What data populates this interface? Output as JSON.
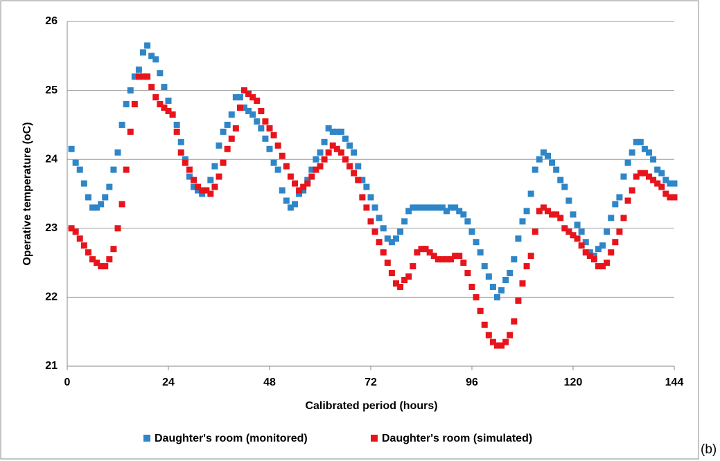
{
  "chart_data": {
    "type": "scatter",
    "x_label": "Calibrated period (hours)",
    "y_label": "Operative temperature (oC)",
    "panel_label": "(b)",
    "x": [
      1,
      2,
      3,
      4,
      5,
      6,
      7,
      8,
      9,
      10,
      11,
      12,
      13,
      14,
      15,
      16,
      17,
      18,
      19,
      20,
      21,
      22,
      23,
      24,
      25,
      26,
      27,
      28,
      29,
      30,
      31,
      32,
      33,
      34,
      35,
      36,
      37,
      38,
      39,
      40,
      41,
      42,
      43,
      44,
      45,
      46,
      47,
      48,
      49,
      50,
      51,
      52,
      53,
      54,
      55,
      56,
      57,
      58,
      59,
      60,
      61,
      62,
      63,
      64,
      65,
      66,
      67,
      68,
      69,
      70,
      71,
      72,
      73,
      74,
      75,
      76,
      77,
      78,
      79,
      80,
      81,
      82,
      83,
      84,
      85,
      86,
      87,
      88,
      89,
      90,
      91,
      92,
      93,
      94,
      95,
      96,
      97,
      98,
      99,
      100,
      101,
      102,
      103,
      104,
      105,
      106,
      107,
      108,
      109,
      110,
      111,
      112,
      113,
      114,
      115,
      116,
      117,
      118,
      119,
      120,
      121,
      122,
      123,
      124,
      125,
      126,
      127,
      128,
      129,
      130,
      131,
      132,
      133,
      134,
      135,
      136,
      137,
      138,
      139,
      140,
      141,
      142,
      143,
      144
    ],
    "series": [
      {
        "name": "Daughter's room (monitored)",
        "color": "#2e86c8",
        "values": [
          24.15,
          23.95,
          23.85,
          23.65,
          23.45,
          23.3,
          23.3,
          23.35,
          23.45,
          23.6,
          23.85,
          24.1,
          24.5,
          24.8,
          25.0,
          25.2,
          25.3,
          25.55,
          25.65,
          25.5,
          25.45,
          25.25,
          25.05,
          24.85,
          24.65,
          24.5,
          24.25,
          24.0,
          23.75,
          23.6,
          23.55,
          23.5,
          23.55,
          23.7,
          23.9,
          24.2,
          24.4,
          24.5,
          24.65,
          24.9,
          24.9,
          24.75,
          24.7,
          24.65,
          24.55,
          24.45,
          24.3,
          24.15,
          23.95,
          23.85,
          23.55,
          23.4,
          23.3,
          23.35,
          23.5,
          23.55,
          23.7,
          23.85,
          24.0,
          24.1,
          24.25,
          24.45,
          24.4,
          24.4,
          24.4,
          24.3,
          24.2,
          24.1,
          23.9,
          23.7,
          23.6,
          23.45,
          23.3,
          23.15,
          23.0,
          22.85,
          22.8,
          22.85,
          22.95,
          23.1,
          23.25,
          23.3,
          23.3,
          23.3,
          23.3,
          23.3,
          23.3,
          23.3,
          23.3,
          23.25,
          23.3,
          23.3,
          23.25,
          23.2,
          23.1,
          22.95,
          22.8,
          22.65,
          22.45,
          22.3,
          22.15,
          22.0,
          22.1,
          22.25,
          22.35,
          22.55,
          22.85,
          23.1,
          23.25,
          23.5,
          23.85,
          24.0,
          24.1,
          24.05,
          23.95,
          23.85,
          23.7,
          23.6,
          23.4,
          23.2,
          23.05,
          22.95,
          22.8,
          22.65,
          22.6,
          22.7,
          22.75,
          22.95,
          23.15,
          23.35,
          23.45,
          23.75,
          23.95,
          24.1,
          24.25,
          24.25,
          24.15,
          24.1,
          24.0,
          23.85,
          23.8,
          23.7,
          23.65,
          23.65
        ]
      },
      {
        "name": "Daughter's room (simulated)",
        "color": "#e8141c",
        "values": [
          23.0,
          22.95,
          22.85,
          22.75,
          22.65,
          22.55,
          22.5,
          22.45,
          22.45,
          22.55,
          22.7,
          23.0,
          23.35,
          23.85,
          24.4,
          24.8,
          25.2,
          25.2,
          25.2,
          25.05,
          24.9,
          24.8,
          24.75,
          24.7,
          24.65,
          24.4,
          24.1,
          23.95,
          23.85,
          23.7,
          23.6,
          23.55,
          23.55,
          23.5,
          23.6,
          23.75,
          23.95,
          24.15,
          24.3,
          24.45,
          24.75,
          25.0,
          24.95,
          24.9,
          24.85,
          24.7,
          24.55,
          24.45,
          24.35,
          24.2,
          24.05,
          23.9,
          23.75,
          23.65,
          23.55,
          23.6,
          23.65,
          23.75,
          23.85,
          23.9,
          24.0,
          24.1,
          24.2,
          24.15,
          24.1,
          24.0,
          23.9,
          23.8,
          23.7,
          23.45,
          23.3,
          23.1,
          22.95,
          22.8,
          22.65,
          22.5,
          22.35,
          22.2,
          22.15,
          22.25,
          22.3,
          22.45,
          22.65,
          22.7,
          22.7,
          22.65,
          22.6,
          22.55,
          22.55,
          22.55,
          22.55,
          22.6,
          22.6,
          22.5,
          22.35,
          22.15,
          22.0,
          21.8,
          21.6,
          21.45,
          21.35,
          21.3,
          21.3,
          21.35,
          21.45,
          21.65,
          21.95,
          22.2,
          22.45,
          22.6,
          22.95,
          23.25,
          23.3,
          23.25,
          23.2,
          23.2,
          23.15,
          23.0,
          22.95,
          22.9,
          22.85,
          22.75,
          22.65,
          22.6,
          22.55,
          22.45,
          22.45,
          22.5,
          22.65,
          22.8,
          22.95,
          23.15,
          23.4,
          23.55,
          23.75,
          23.8,
          23.8,
          23.75,
          23.7,
          23.65,
          23.6,
          23.5,
          23.45,
          23.45
        ]
      }
    ],
    "xlim": [
      0,
      144
    ],
    "xticks": [
      0,
      24,
      48,
      72,
      96,
      120,
      144
    ],
    "ylim": [
      21,
      26
    ],
    "yticks": [
      21,
      22,
      23,
      24,
      25,
      26
    ],
    "grid": true,
    "legend": "bottom"
  }
}
